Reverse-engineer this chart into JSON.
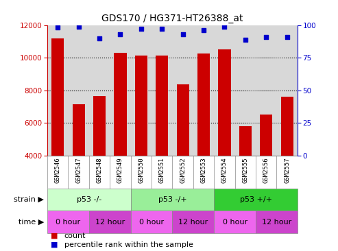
{
  "title": "GDS170 / HG371-HT26388_at",
  "samples": [
    "GSM2546",
    "GSM2547",
    "GSM2548",
    "GSM2549",
    "GSM2550",
    "GSM2551",
    "GSM2552",
    "GSM2553",
    "GSM2554",
    "GSM2555",
    "GSM2556",
    "GSM2557"
  ],
  "counts": [
    11200,
    7150,
    7650,
    10300,
    10150,
    10150,
    8350,
    10250,
    10500,
    5800,
    6500,
    7600
  ],
  "percentiles": [
    98,
    99,
    90,
    93,
    97,
    97,
    93,
    96,
    99,
    89,
    91,
    91
  ],
  "ylim_left": [
    4000,
    12000
  ],
  "ylim_right": [
    0,
    100
  ],
  "yticks_left": [
    4000,
    6000,
    8000,
    10000,
    12000
  ],
  "yticks_right": [
    0,
    25,
    50,
    75,
    100
  ],
  "bar_color": "#cc0000",
  "dot_color": "#0000cc",
  "strain_groups": [
    {
      "label": "p53 -/-",
      "start": 0,
      "end": 4,
      "color": "#ccffcc"
    },
    {
      "label": "p53 -/+",
      "start": 4,
      "end": 8,
      "color": "#99ee99"
    },
    {
      "label": "p53 +/+",
      "start": 8,
      "end": 12,
      "color": "#33cc33"
    }
  ],
  "time_groups": [
    {
      "label": "0 hour",
      "start": 0,
      "end": 2,
      "color": "#ee66ee"
    },
    {
      "label": "12 hour",
      "start": 2,
      "end": 4,
      "color": "#cc44cc"
    },
    {
      "label": "0 hour",
      "start": 4,
      "end": 6,
      "color": "#ee66ee"
    },
    {
      "label": "12 hour",
      "start": 6,
      "end": 8,
      "color": "#cc44cc"
    },
    {
      "label": "0 hour",
      "start": 8,
      "end": 10,
      "color": "#ee66ee"
    },
    {
      "label": "12 hour",
      "start": 10,
      "end": 12,
      "color": "#cc44cc"
    }
  ],
  "legend_count_color": "#cc0000",
  "legend_dot_color": "#0000cc",
  "axis_color_left": "#cc0000",
  "axis_color_right": "#0000cc",
  "background_color": "#ffffff",
  "plot_bg": "#d8d8d8",
  "xtick_bg": "#cccccc",
  "border_color": "#888888"
}
